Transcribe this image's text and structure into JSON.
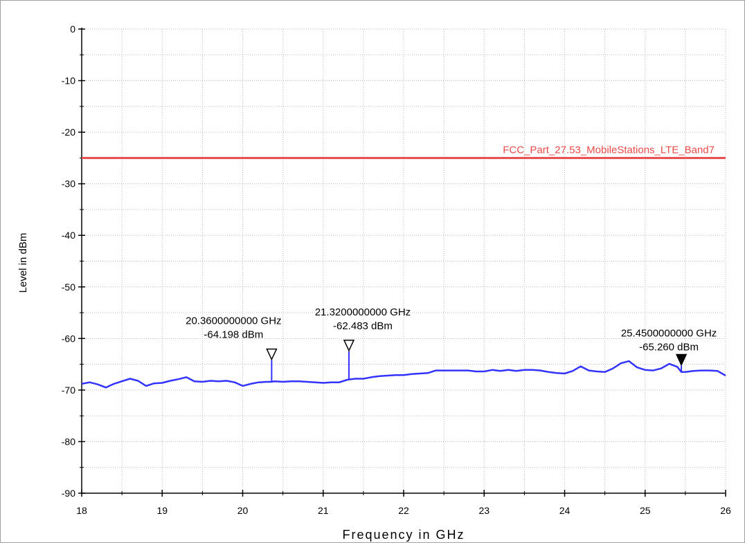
{
  "chart_data": {
    "type": "line",
    "title": "",
    "xlabel": "Frequency in GHz",
    "ylabel": "Level in dBm",
    "xlim": [
      18,
      26
    ],
    "ylim": [
      -90,
      0
    ],
    "x_ticks": [
      18,
      19,
      20,
      21,
      22,
      23,
      24,
      25,
      26
    ],
    "y_ticks": [
      0,
      -10,
      -20,
      -30,
      -40,
      -50,
      -60,
      -70,
      -80,
      -90
    ],
    "x_tick_labels": [
      "18",
      "19",
      "20",
      "21",
      "22",
      "23",
      "24",
      "25",
      "26"
    ],
    "y_tick_labels": [
      "0",
      "-10",
      "-20",
      "-30",
      "-40",
      "-50",
      "-60",
      "-70",
      "-80",
      "-90"
    ],
    "grid": true,
    "colors": {
      "trace": "#3333ff",
      "limit": "#e84a4a",
      "grid": "#bbbbbb"
    },
    "limit_line": {
      "name": "FCC_Part_27.53_MobileStations_LTE_Band7",
      "y": -25
    },
    "series": [
      {
        "x": [
          18.0,
          18.1,
          18.2,
          18.3,
          18.4,
          18.5,
          18.6,
          18.7,
          18.8,
          18.9,
          19.0,
          19.1,
          19.2,
          19.3,
          19.4,
          19.5,
          19.6,
          19.7,
          19.8,
          19.9,
          20.0,
          20.1,
          20.2,
          20.3,
          20.35,
          20.4,
          20.5,
          20.6,
          20.7,
          20.8,
          20.9,
          21.0,
          21.1,
          21.2,
          21.3,
          21.4,
          21.5,
          21.6,
          21.7,
          21.8,
          21.9,
          22.0,
          22.1,
          22.2,
          22.3,
          22.4,
          22.5,
          22.6,
          22.7,
          22.8,
          22.9,
          23.0,
          23.1,
          23.2,
          23.3,
          23.4,
          23.5,
          23.6,
          23.7,
          23.8,
          23.9,
          24.0,
          24.1,
          24.2,
          24.3,
          24.4,
          24.5,
          24.6,
          24.7,
          24.8,
          24.9,
          25.0,
          25.1,
          25.2,
          25.3,
          25.4,
          25.45,
          25.5,
          25.6,
          25.7,
          25.8,
          25.9,
          26.0
        ],
        "y": [
          -68.8,
          -68.5,
          -68.9,
          -69.5,
          -68.8,
          -68.3,
          -67.8,
          -68.2,
          -69.2,
          -68.7,
          -68.6,
          -68.2,
          -67.9,
          -67.5,
          -68.3,
          -68.4,
          -68.2,
          -68.3,
          -68.2,
          -68.5,
          -69.2,
          -68.8,
          -68.5,
          -68.4,
          -68.4,
          -68.3,
          -68.4,
          -68.3,
          -68.3,
          -68.4,
          -68.5,
          -68.6,
          -68.5,
          -68.5,
          -68.0,
          -67.8,
          -67.8,
          -67.5,
          -67.3,
          -67.2,
          -67.1,
          -67.1,
          -66.9,
          -66.8,
          -66.7,
          -66.2,
          -66.2,
          -66.2,
          -66.2,
          -66.2,
          -66.4,
          -66.4,
          -66.1,
          -66.3,
          -66.1,
          -66.3,
          -66.1,
          -66.1,
          -66.2,
          -66.5,
          -66.7,
          -66.8,
          -66.3,
          -65.4,
          -66.2,
          -66.4,
          -66.5,
          -65.8,
          -64.8,
          -64.4,
          -65.6,
          -66.1,
          -66.2,
          -65.8,
          -64.9,
          -65.5,
          -66.5,
          -66.5,
          -66.3,
          -66.2,
          -66.2,
          -66.3,
          -67.2
        ]
      }
    ],
    "markers": [
      {
        "freq": 20.36,
        "level": -64.198,
        "label_freq": "20.3600000000 GHz",
        "label_level": "-64.198 dBm",
        "filled": false
      },
      {
        "freq": 21.32,
        "level": -62.483,
        "label_freq": "21.3200000000 GHz",
        "label_level": "-62.483 dBm",
        "filled": false
      },
      {
        "freq": 25.45,
        "level": -65.26,
        "label_freq": "25.4500000000 GHz",
        "label_level": "-65.260 dBm",
        "filled": true
      }
    ]
  }
}
